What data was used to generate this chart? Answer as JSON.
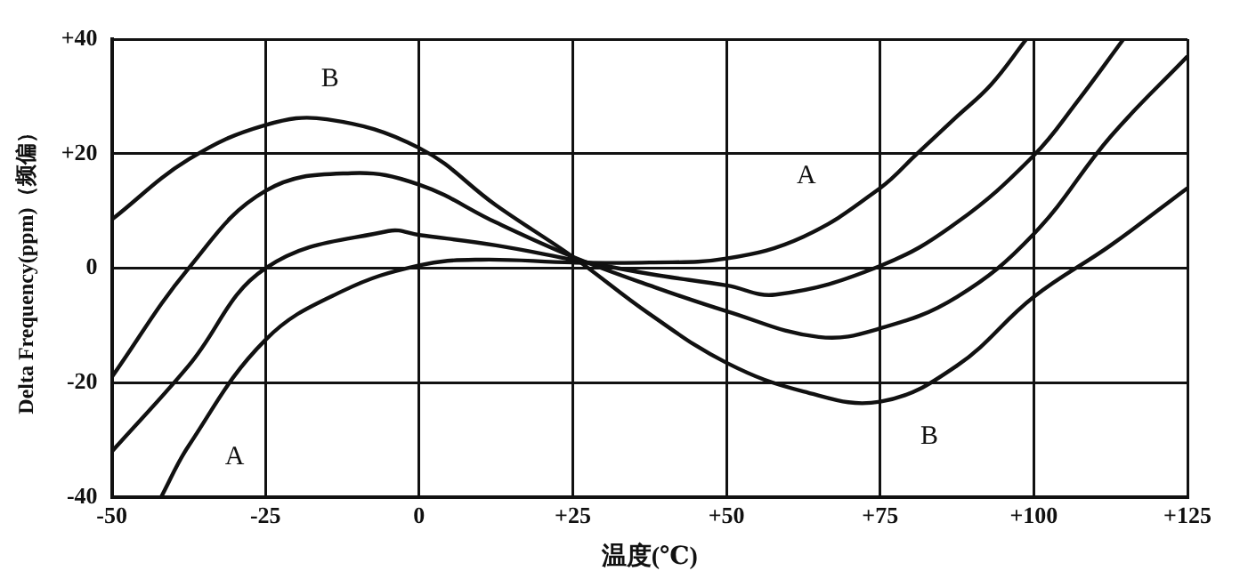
{
  "chart_data": {
    "type": "line",
    "xlabel": "温度(℃)",
    "ylabel": "Delta Frequency(ppm)（频偏）",
    "xlim": [
      -50,
      125
    ],
    "xticks": [
      -50,
      -25,
      0,
      {
        "value": 25,
        "label": "+25"
      },
      {
        "value": 50,
        "label": "+50"
      },
      {
        "value": 75,
        "label": "+75"
      },
      {
        "value": 100,
        "label": "+100"
      },
      {
        "value": 125,
        "label": "+125"
      }
    ],
    "ylim": [
      -40,
      40
    ],
    "yticks": [
      -40,
      -20,
      0,
      {
        "value": 20,
        "label": "+20"
      },
      {
        "value": 40,
        "label": "+40"
      }
    ],
    "grid": true,
    "legend": false,
    "marker": "none",
    "line_style": "solid",
    "series": [
      {
        "color": "#111111",
        "x": [
          -50,
          -37.5,
          -25,
          -15,
          0,
          12.5,
          25,
          37.5,
          50,
          62.5,
          75,
          87.5,
          100,
          112.5,
          125
        ],
        "values": [
          8.5,
          19,
          25,
          26,
          21,
          11,
          2,
          -8,
          -16.5,
          -21.5,
          -23.3,
          -17,
          -5,
          4,
          14
        ]
      },
      {
        "color": "#111111",
        "x": [
          -50,
          -37.5,
          -25,
          -11,
          0,
          12.5,
          25,
          37.5,
          50,
          65,
          75,
          87.5,
          100,
          112.5,
          125
        ],
        "values": [
          -19,
          0,
          13.5,
          16.6,
          14.6,
          8,
          2,
          -3,
          -7.5,
          -12,
          -10.5,
          -5,
          6,
          23,
          37
        ]
      },
      {
        "color": "#111111",
        "x": [
          -50,
          -37.5,
          -25,
          -5,
          0,
          12.5,
          25,
          37.5,
          50,
          58,
          75,
          87.5,
          100,
          107,
          114.6
        ],
        "values": [
          -32,
          -17,
          0,
          6.5,
          5.8,
          4,
          1.5,
          -1,
          -3,
          -4.6,
          0.4,
          8,
          19.7,
          29,
          40
        ]
      },
      {
        "color": "#111111",
        "x": [
          -42,
          -37.5,
          -25,
          -12.5,
          0,
          10,
          25,
          37.5,
          50,
          62.5,
          75,
          81,
          87.5,
          93,
          98.8
        ],
        "values": [
          -40,
          -31,
          -12.5,
          -4,
          0.5,
          1.5,
          1,
          1,
          1.7,
          5.5,
          14,
          20,
          26.5,
          32,
          40
        ]
      }
    ],
    "annotations": [
      "B",
      "A",
      "B",
      "A"
    ]
  }
}
